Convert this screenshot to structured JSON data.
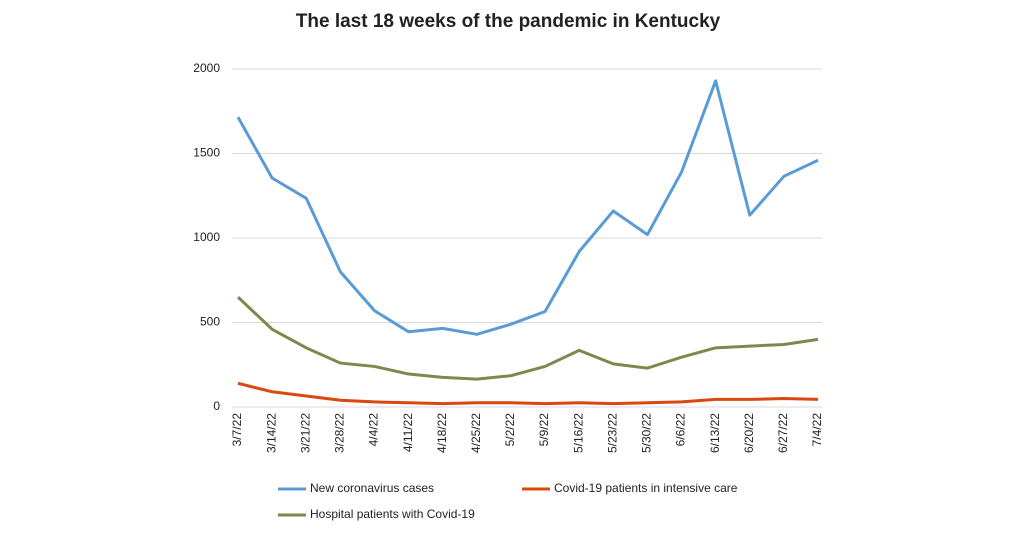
{
  "chart_data": {
    "type": "line",
    "title": "The last 18 weeks of the pandemic in Kentucky",
    "categories": [
      "3/7/22",
      "3/14/22",
      "3/21/22",
      "3/28/22",
      "4/4/22",
      "4/11/22",
      "4/18/22",
      "4/25/22",
      "5/2/22",
      "5/9/22",
      "5/16/22",
      "5/23/22",
      "5/30/22",
      "6/6/22",
      "6/13/22",
      "6/20/22",
      "6/27/22",
      "7/4/22"
    ],
    "series": [
      {
        "name": "New coronavirus cases",
        "color": "#5b9bd5",
        "values": [
          1715,
          1355,
          1235,
          800,
          570,
          445,
          465,
          430,
          490,
          565,
          920,
          1160,
          1020,
          1390,
          1930,
          1135,
          1365,
          1460
        ]
      },
      {
        "name": "Covid-19 patients in intensive care",
        "color": "#d9480f",
        "values": [
          140,
          90,
          65,
          40,
          30,
          25,
          20,
          25,
          25,
          20,
          25,
          20,
          25,
          30,
          45,
          45,
          50,
          45
        ]
      },
      {
        "name": "Hospital patients with Covid-19",
        "color": "#7a8a4c",
        "values": [
          650,
          460,
          350,
          260,
          240,
          195,
          175,
          165,
          185,
          240,
          335,
          255,
          230,
          295,
          350,
          360,
          370,
          400
        ]
      }
    ],
    "ylim": [
      0,
      2000
    ],
    "yticks": [
      0,
      500,
      1000,
      1500,
      2000
    ],
    "grid": true
  }
}
